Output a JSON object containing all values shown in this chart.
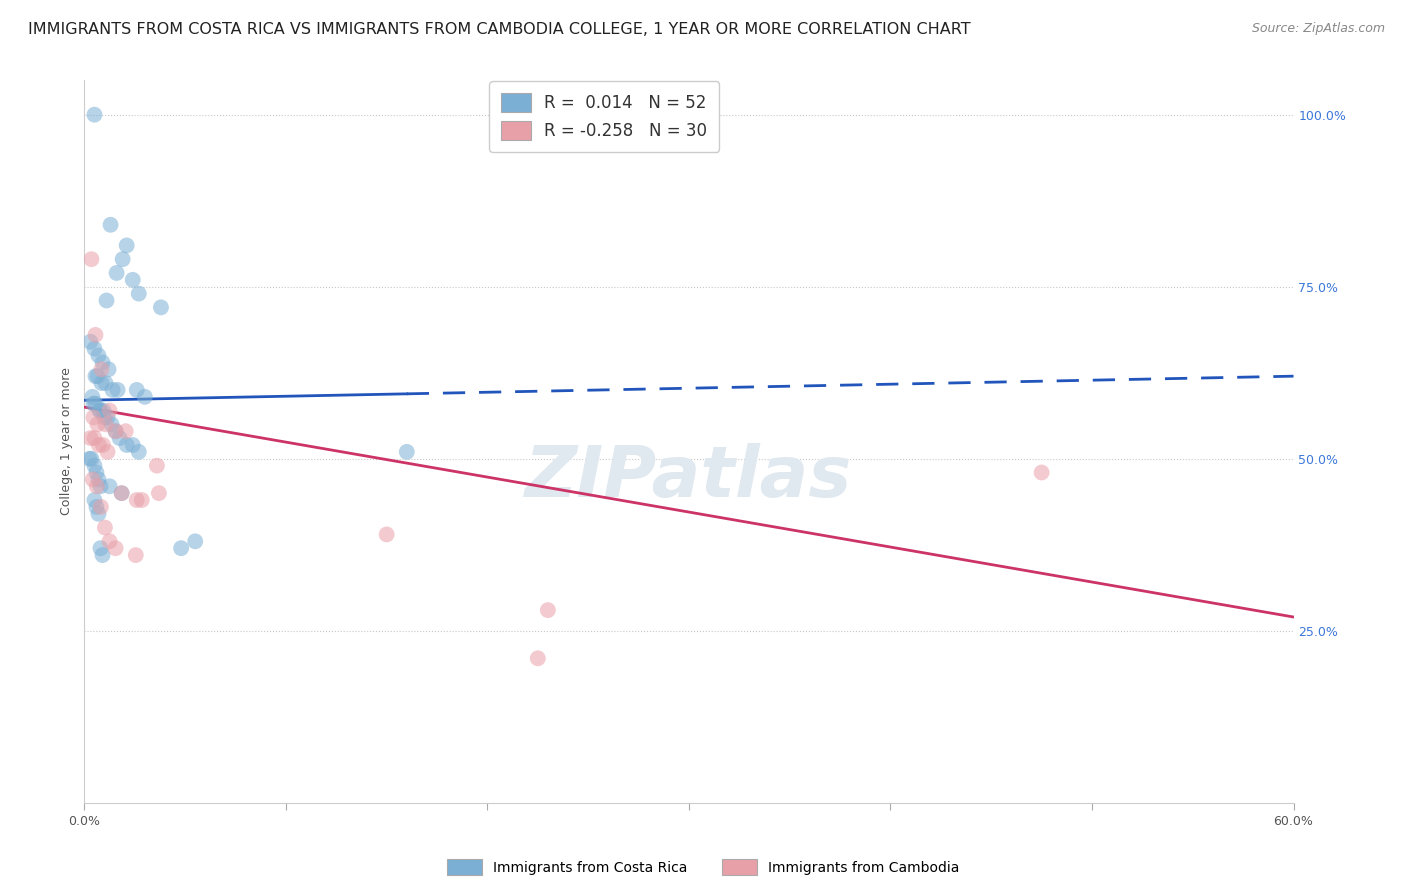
{
  "title": "IMMIGRANTS FROM COSTA RICA VS IMMIGRANTS FROM CAMBODIA COLLEGE, 1 YEAR OR MORE CORRELATION CHART",
  "source": "Source: ZipAtlas.com",
  "ylabel": "College, 1 year or more",
  "legend_label1": "Immigrants from Costa Rica",
  "legend_label2": "Immigrants from Cambodia",
  "legend_r1": "R =  0.014",
  "legend_n1": "N = 52",
  "legend_r2": "R = -0.258",
  "legend_n2": "N = 30",
  "costa_rica_x": [
    0.5,
    1.3,
    2.1,
    1.9,
    1.6,
    2.4,
    1.1,
    2.7,
    3.8,
    0.3,
    0.5,
    0.7,
    0.9,
    1.2,
    0.55,
    0.65,
    0.85,
    1.05,
    1.4,
    1.65,
    3.0,
    0.4,
    0.45,
    0.55,
    0.75,
    0.8,
    0.95,
    1.0,
    1.15,
    1.35,
    1.55,
    1.75,
    2.1,
    2.4,
    2.7,
    0.25,
    0.35,
    0.5,
    0.6,
    0.7,
    0.8,
    1.25,
    1.85,
    2.6,
    0.5,
    0.6,
    0.7,
    0.8,
    4.8,
    0.9,
    5.5,
    16.0
  ],
  "costa_rica_y": [
    100,
    84,
    81,
    79,
    77,
    76,
    73,
    74,
    72,
    67,
    66,
    65,
    64,
    63,
    62,
    62,
    61,
    61,
    60,
    60,
    59,
    59,
    58,
    58,
    57,
    57,
    57,
    56,
    56,
    55,
    54,
    53,
    52,
    52,
    51,
    50,
    50,
    49,
    48,
    47,
    46,
    46,
    45,
    60,
    44,
    43,
    42,
    37,
    37,
    36,
    38,
    51
  ],
  "cambodia_x": [
    0.35,
    0.55,
    0.85,
    1.25,
    1.85,
    2.6,
    0.45,
    0.65,
    1.05,
    1.55,
    2.05,
    2.85,
    0.3,
    0.5,
    0.72,
    0.92,
    1.15,
    3.6,
    0.42,
    0.62,
    3.7,
    0.82,
    1.02,
    1.25,
    15.0,
    1.55,
    2.55,
    23.0,
    47.5,
    22.5
  ],
  "cambodia_y": [
    79,
    68,
    63,
    57,
    45,
    44,
    56,
    55,
    55,
    54,
    54,
    44,
    53,
    53,
    52,
    52,
    51,
    49,
    47,
    46,
    45,
    43,
    40,
    38,
    39,
    37,
    36,
    28,
    48,
    21
  ],
  "blue_line": {
    "x0": 0,
    "x1": 60,
    "y0": 58.5,
    "y1": 62.0,
    "solid_to": 16
  },
  "pink_line": {
    "x0": 0,
    "x1": 60,
    "y0": 57.5,
    "y1": 27.0
  },
  "xlim": [
    0,
    60
  ],
  "ylim": [
    0,
    105
  ],
  "background_color": "#ffffff",
  "dot_alpha": 0.55,
  "dot_size": 130,
  "blue_color": "#7bafd4",
  "pink_color": "#e8a0a8",
  "blue_line_color": "#2255bb",
  "pink_line_color": "#cc3366",
  "grid_color": "#c8c8c8",
  "title_fontsize": 11.5,
  "source_fontsize": 9,
  "axis_fontsize": 9,
  "legend_fontsize": 12,
  "watermark_color": "#e0e8f0",
  "xtick_positions": [
    0,
    10,
    20,
    30,
    40,
    50,
    60
  ],
  "ytick_right": [
    25,
    50,
    75,
    100
  ]
}
